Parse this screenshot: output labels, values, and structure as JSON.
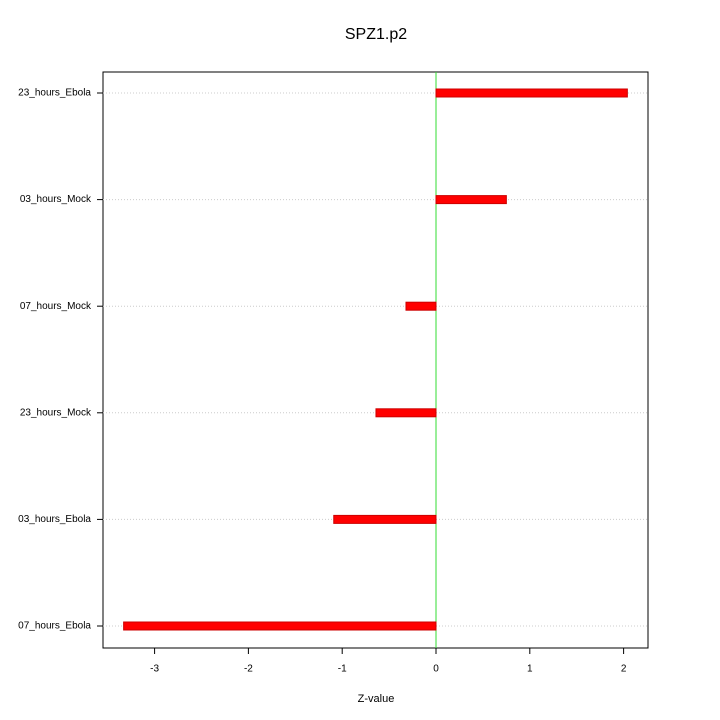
{
  "chart_data": {
    "type": "hbar",
    "title": "SPZ1.p2",
    "x_label": "Z-value",
    "categories": [
      "23_hours_Ebola",
      "03_hours_Mock",
      "07_hours_Mock",
      "23_hours_Mock",
      "03_hours_Ebola",
      "07_hours_Ebola"
    ],
    "values": [
      2.04,
      0.75,
      -0.32,
      -0.64,
      -1.09,
      -3.33
    ],
    "color": "#ff0000",
    "xlim": [
      -3.55,
      2.26
    ],
    "xticks": [
      -3,
      -2,
      -1,
      0,
      1,
      2
    ],
    "grid": true
  }
}
